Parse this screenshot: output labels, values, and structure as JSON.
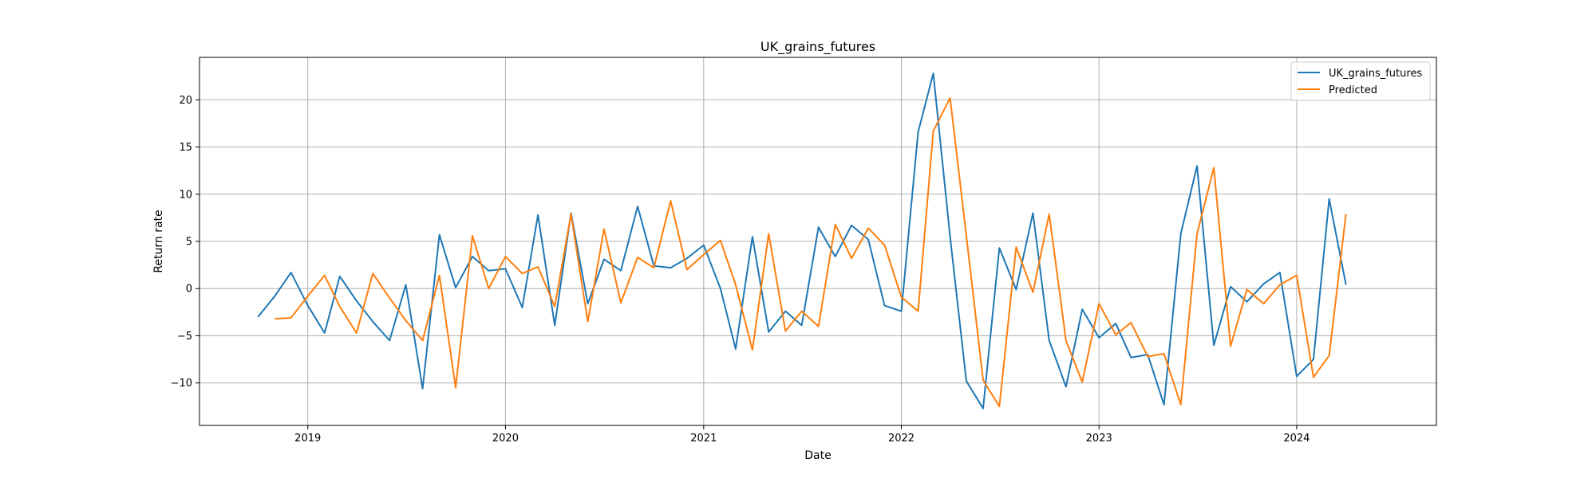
{
  "chart_data": {
    "type": "line",
    "title": "UK_grains_futures",
    "xlabel": "Date",
    "ylabel": "Return rate",
    "xlim": [
      "2018-06-15",
      "2024-09-15"
    ],
    "ylim": [
      -14.5,
      24.5
    ],
    "x_ticks": [
      "2019-01-01",
      "2020-01-01",
      "2021-01-01",
      "2022-01-01",
      "2023-01-01",
      "2024-01-01"
    ],
    "x_tick_labels": [
      "2019",
      "2020",
      "2021",
      "2022",
      "2023",
      "2024"
    ],
    "y_ticks": [
      -10,
      -5,
      0,
      5,
      10,
      15,
      20
    ],
    "y_tick_labels": [
      "−10",
      "−5",
      "0",
      "5",
      "10",
      "15",
      "20"
    ],
    "grid": true,
    "legend_position": "upper right",
    "x": [
      "2018-10-01",
      "2018-11-01",
      "2018-12-01",
      "2019-01-01",
      "2019-02-01",
      "2019-03-01",
      "2019-04-01",
      "2019-05-01",
      "2019-06-01",
      "2019-07-01",
      "2019-08-01",
      "2019-09-01",
      "2019-10-01",
      "2019-11-01",
      "2019-12-01",
      "2020-01-01",
      "2020-02-01",
      "2020-03-01",
      "2020-04-01",
      "2020-05-01",
      "2020-06-01",
      "2020-07-01",
      "2020-08-01",
      "2020-09-01",
      "2020-10-01",
      "2020-11-01",
      "2020-12-01",
      "2021-01-01",
      "2021-02-01",
      "2021-03-01",
      "2021-04-01",
      "2021-05-01",
      "2021-06-01",
      "2021-07-01",
      "2021-08-01",
      "2021-09-01",
      "2021-10-01",
      "2021-11-01",
      "2021-12-01",
      "2022-01-01",
      "2022-02-01",
      "2022-03-01",
      "2022-04-01",
      "2022-05-01",
      "2022-06-01",
      "2022-07-01",
      "2022-08-01",
      "2022-09-01",
      "2022-10-01",
      "2022-11-01",
      "2022-12-01",
      "2023-01-01",
      "2023-02-01",
      "2023-03-01",
      "2023-04-01",
      "2023-05-01",
      "2023-06-01",
      "2023-07-01",
      "2023-08-01",
      "2023-09-01",
      "2023-10-01",
      "2023-11-01",
      "2023-12-01",
      "2024-01-01",
      "2024-02-01",
      "2024-03-01",
      "2024-04-01"
    ],
    "series": [
      {
        "name": "UK_grains_futures",
        "color": "#1f77b4",
        "values": [
          -3.0,
          -0.8,
          1.7,
          -1.8,
          -4.7,
          1.3,
          -1.3,
          -3.5,
          -5.5,
          0.4,
          -10.6,
          5.7,
          0.1,
          3.4,
          1.9,
          2.1,
          -2.0,
          7.8,
          -3.9,
          8.0,
          -1.6,
          3.1,
          1.9,
          8.7,
          2.4,
          2.2,
          3.2,
          4.6,
          0.0,
          -6.4,
          5.5,
          -4.6,
          -2.4,
          -3.9,
          6.5,
          3.4,
          6.7,
          5.2,
          -1.8,
          -2.4,
          16.6,
          22.8,
          5.5,
          -9.8,
          -12.7,
          4.3,
          -0.1,
          8.0,
          -5.5,
          -10.4,
          -2.2,
          -5.2,
          -3.7,
          -7.3,
          -7.0,
          -12.3,
          5.8,
          13.0,
          -6.0,
          0.2,
          -1.4,
          0.5,
          1.7,
          -9.3,
          -7.5,
          9.5,
          0.4
        ]
      },
      {
        "name": "Predicted",
        "color": "#ff7f0e",
        "values": [
          null,
          -3.2,
          -3.1,
          -0.8,
          1.4,
          -1.9,
          -4.7,
          1.6,
          -1.0,
          -3.4,
          -5.5,
          1.4,
          -10.5,
          5.6,
          0.0,
          3.4,
          1.6,
          2.3,
          -1.9,
          7.9,
          -3.5,
          6.3,
          -1.5,
          3.3,
          2.2,
          9.3,
          2.0,
          3.6,
          5.1,
          0.4,
          -6.5,
          5.8,
          -4.5,
          -2.4,
          -4.0,
          6.8,
          3.2,
          6.4,
          4.6,
          -0.9,
          -2.4,
          16.7,
          20.2,
          5.6,
          -9.7,
          -12.5,
          4.4,
          -0.4,
          7.9,
          -5.5,
          -9.9,
          -1.6,
          -4.9,
          -3.6,
          -7.2,
          -6.9,
          -12.3,
          5.8,
          12.8,
          -6.1,
          -0.1,
          -1.6,
          0.4,
          1.4,
          -9.4,
          -7.1,
          7.9
        ]
      }
    ]
  }
}
